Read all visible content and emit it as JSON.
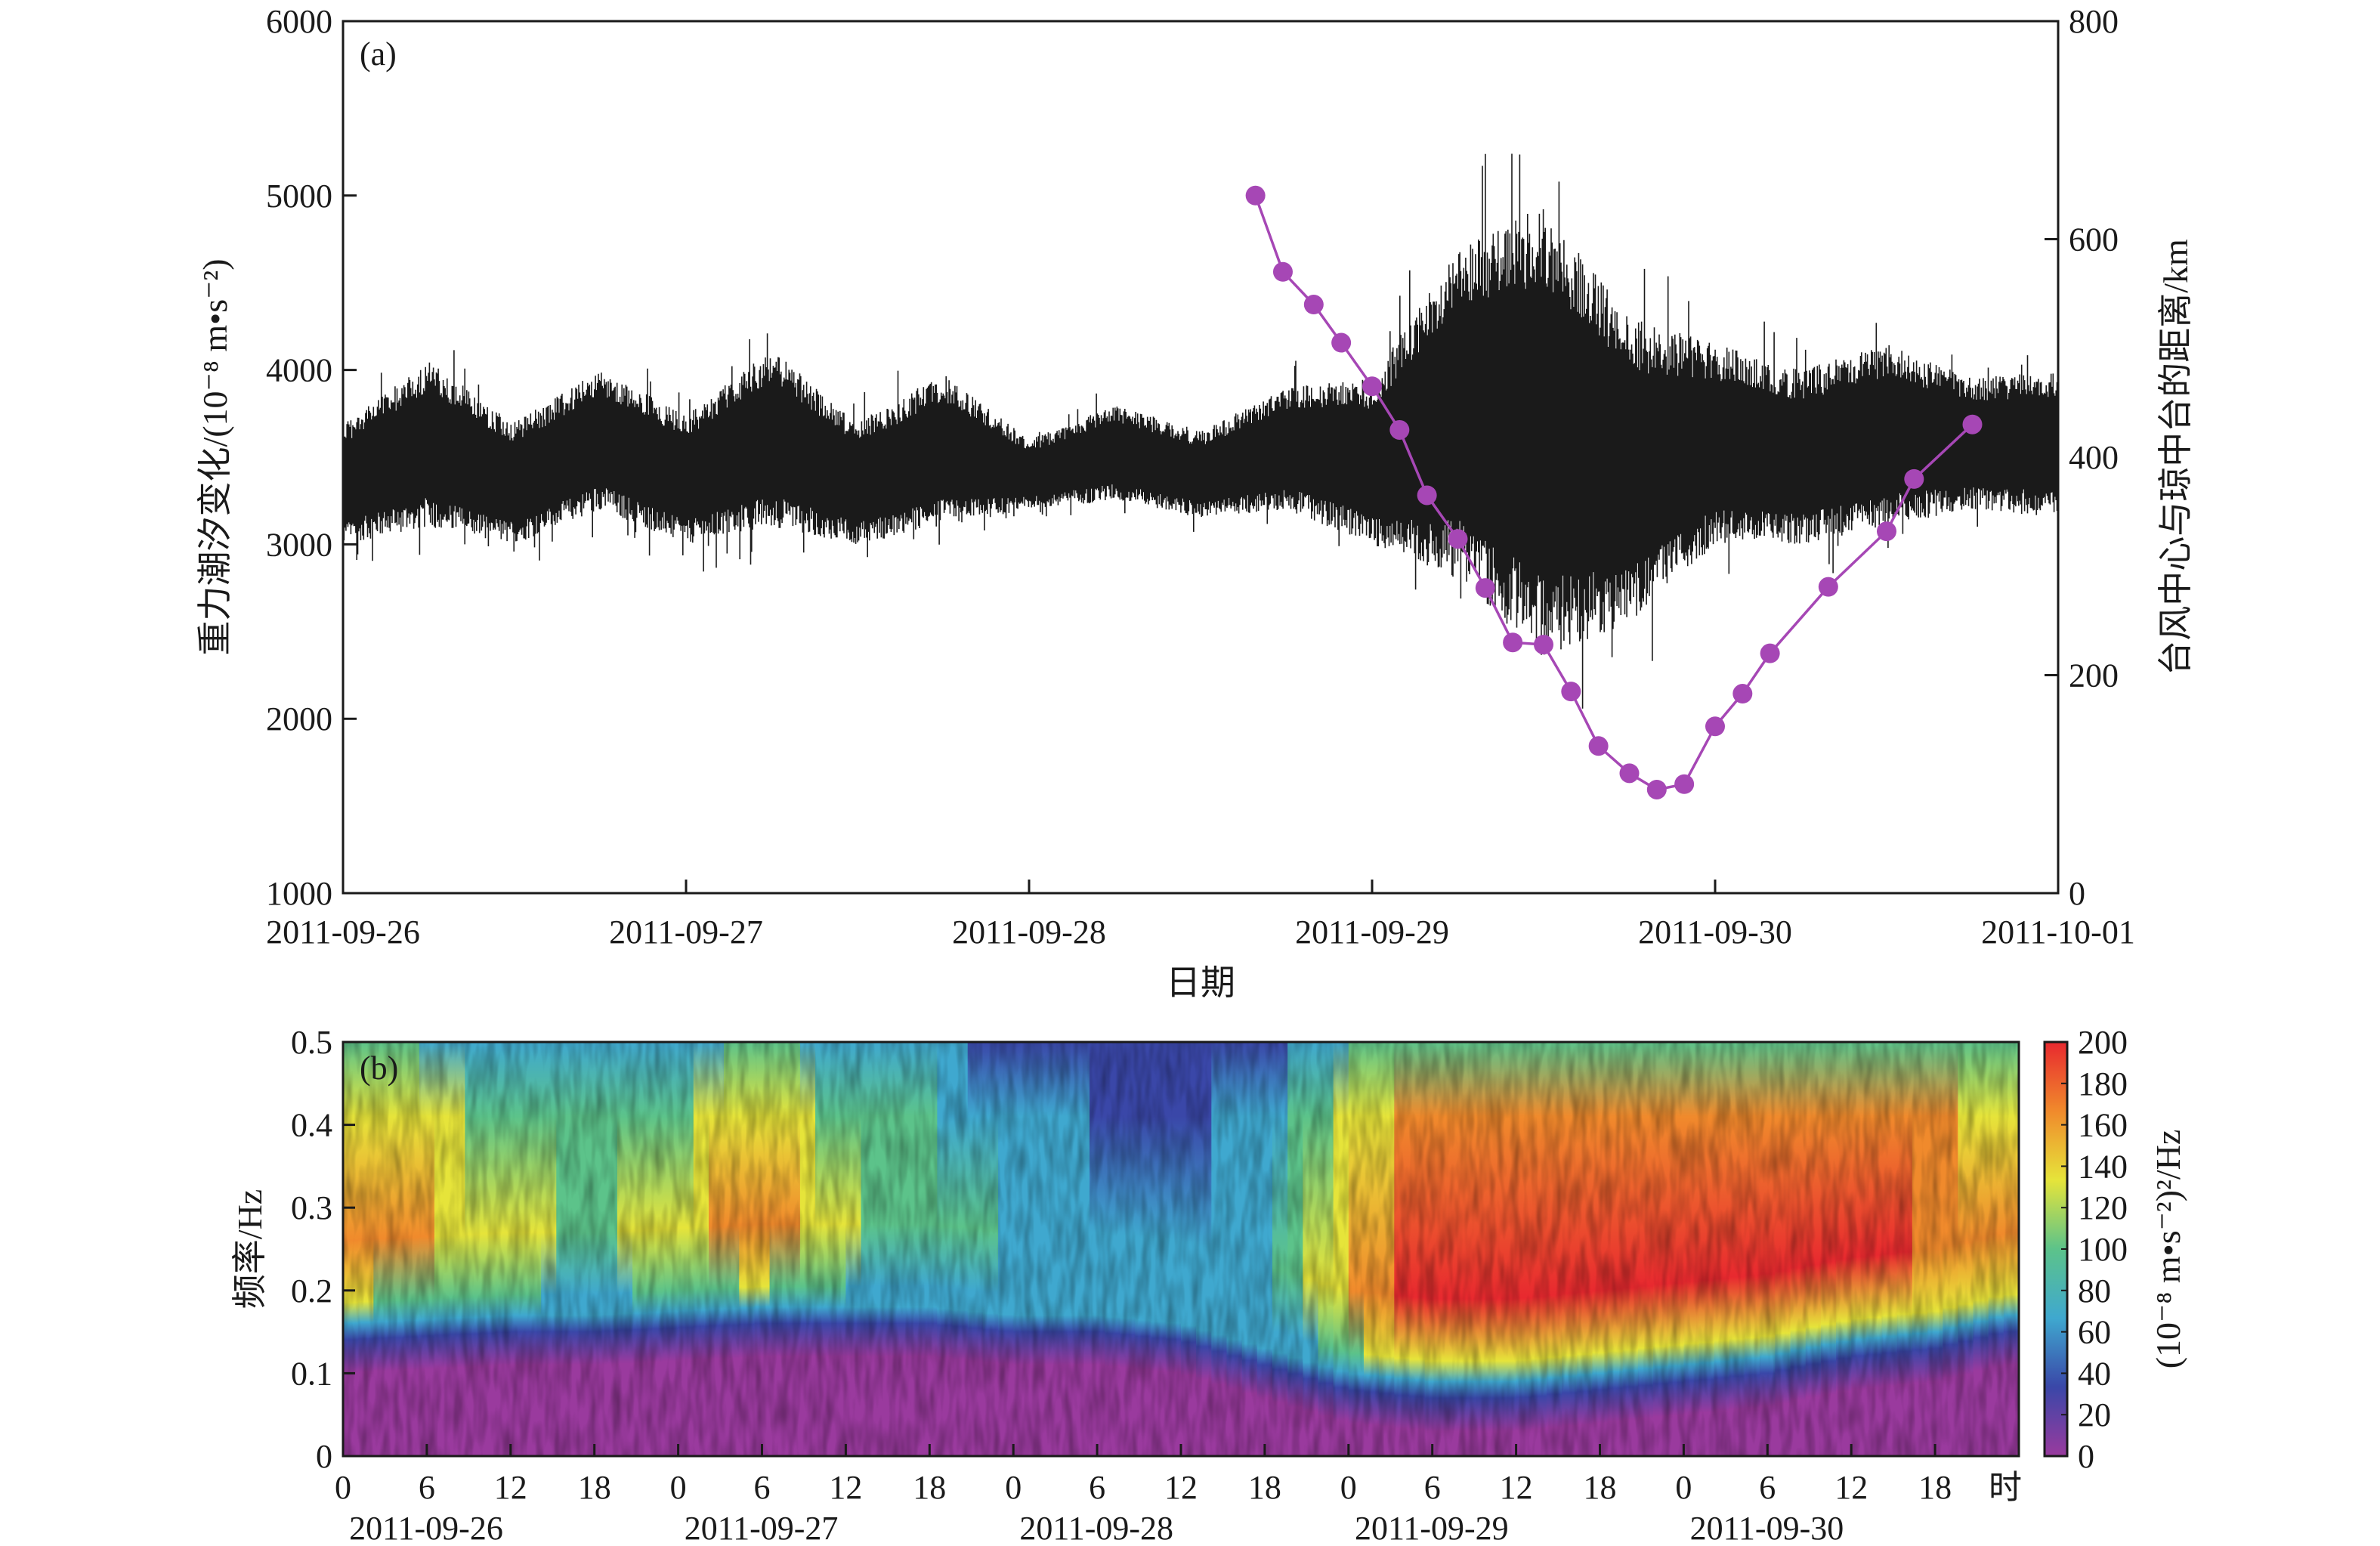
{
  "chart_data": [
    {
      "panel_label": "(a)",
      "type": "line",
      "xlabel": "日期",
      "x_ticks": [
        "2011-09-26",
        "2011-09-27",
        "2011-09-28",
        "2011-09-29",
        "2011-09-30",
        "2011-10-01"
      ],
      "ylabel_left": "重力潮汐变化/(10⁻⁸ m•s⁻²)",
      "ylim_left": [
        1000,
        6000
      ],
      "yticks_left": [
        "1000",
        "2000",
        "3000",
        "4000",
        "5000",
        "6000"
      ],
      "ylabel_right": "台风中心与琼中台的距离/km",
      "ylim_right": [
        0,
        800
      ],
      "yticks_right": [
        "0",
        "200",
        "400",
        "600",
        "800"
      ],
      "series": [
        {
          "axis": "left",
          "color": "#1a1a1a",
          "style": "dense-oscillation",
          "x_days": [
            0.0,
            0.25,
            0.5,
            0.75,
            1.0,
            1.25,
            1.5,
            1.75,
            2.0,
            2.25,
            2.5,
            2.75,
            3.0,
            3.25,
            3.5,
            3.75,
            4.0,
            4.25,
            4.5,
            4.75,
            5.0
          ],
          "upper": [
            3700,
            4050,
            3700,
            4000,
            3750,
            4120,
            3700,
            3980,
            3600,
            3800,
            3650,
            3900,
            3950,
            4700,
            4950,
            4300,
            4150,
            4000,
            4150,
            3950,
            4000
          ],
          "lower": [
            3000,
            3100,
            3000,
            3200,
            3000,
            3100,
            3000,
            3100,
            3200,
            3250,
            3150,
            3200,
            3000,
            2800,
            2350,
            2550,
            3000,
            3000,
            3100,
            3200,
            3150
          ]
        },
        {
          "axis": "right",
          "color": "#a647b5",
          "marker": "circle",
          "x_days": [
            2.66,
            2.74,
            2.83,
            2.91,
            3.0,
            3.08,
            3.16,
            3.25,
            3.33,
            3.41,
            3.5,
            3.58,
            3.66,
            3.75,
            3.83,
            3.91,
            4.0,
            4.08,
            4.16,
            4.33,
            4.5,
            4.58,
            4.75
          ],
          "values": [
            640,
            570,
            540,
            505,
            465,
            425,
            365,
            325,
            280,
            230,
            228,
            185,
            135,
            110,
            95,
            100,
            153,
            183,
            220,
            281,
            332,
            380,
            430
          ]
        }
      ]
    },
    {
      "panel_label": "(b)",
      "type": "heatmap",
      "ylabel": "频率/Hz",
      "ylim": [
        0,
        0.5
      ],
      "yticks": [
        "0",
        "0.1",
        "0.2",
        "0.3",
        "0.4",
        "0.5"
      ],
      "x_hour_ticks": [
        "0",
        "6",
        "12",
        "18",
        "0",
        "6",
        "12",
        "18",
        "0",
        "6",
        "12",
        "18",
        "0",
        "6",
        "12",
        "18",
        "0",
        "6",
        "12",
        "18"
      ],
      "x_hour_unit": "时",
      "x_dates": [
        "2011-09-26",
        "2011-09-27",
        "2011-09-28",
        "2011-09-29",
        "2011-09-30"
      ],
      "colorbar_label": "(10⁻⁸ m•s⁻²)²/Hz",
      "colorbar_range": [
        0,
        200
      ],
      "colorbar_ticks": [
        "0",
        "20",
        "40",
        "60",
        "80",
        "100",
        "120",
        "140",
        "160",
        "180",
        "200"
      ],
      "colormap": [
        "#9a3a9e",
        "#3a47a8",
        "#3fa8cf",
        "#5cc38a",
        "#e6e43a",
        "#f08a2c",
        "#e8292f"
      ],
      "time_days": [
        0.0,
        0.25,
        0.5,
        0.75,
        1.0,
        1.25,
        1.5,
        1.75,
        2.0,
        2.25,
        2.5,
        2.75,
        3.0,
        3.25,
        3.5,
        3.75,
        4.0,
        4.25,
        4.5,
        4.75,
        4.96
      ],
      "lower_edge_hz": [
        0.16,
        0.165,
        0.17,
        0.17,
        0.175,
        0.18,
        0.18,
        0.18,
        0.17,
        0.17,
        0.16,
        0.13,
        0.1,
        0.09,
        0.09,
        0.1,
        0.11,
        0.12,
        0.14,
        0.15,
        0.17
      ],
      "intensity": [
        175,
        150,
        125,
        110,
        130,
        175,
        120,
        100,
        80,
        55,
        50,
        75,
        155,
        200,
        200,
        190,
        195,
        200,
        190,
        180,
        170
      ]
    }
  ]
}
